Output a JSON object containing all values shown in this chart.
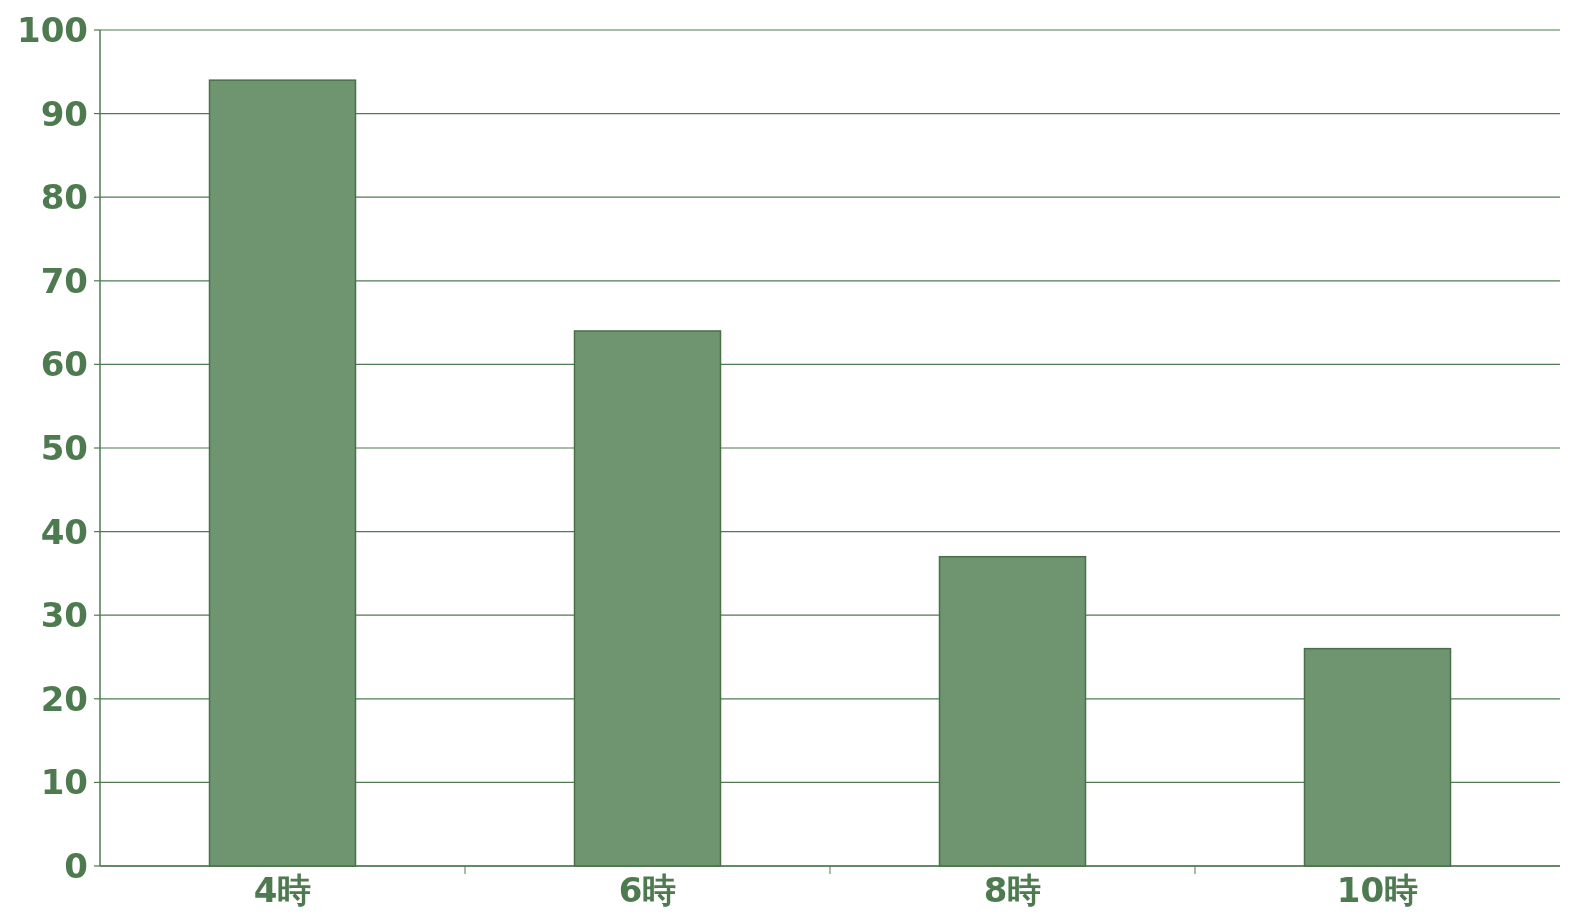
{
  "chart_data": {
    "type": "bar",
    "categories": [
      "4時",
      "6時",
      "8時",
      "10時"
    ],
    "values": [
      94,
      64,
      37,
      26
    ],
    "color": "#6e9470",
    "ylim": [
      0,
      100
    ],
    "yticks": [
      0,
      10,
      20,
      30,
      40,
      50,
      60,
      70,
      80,
      90,
      100
    ],
    "grid": "y"
  }
}
